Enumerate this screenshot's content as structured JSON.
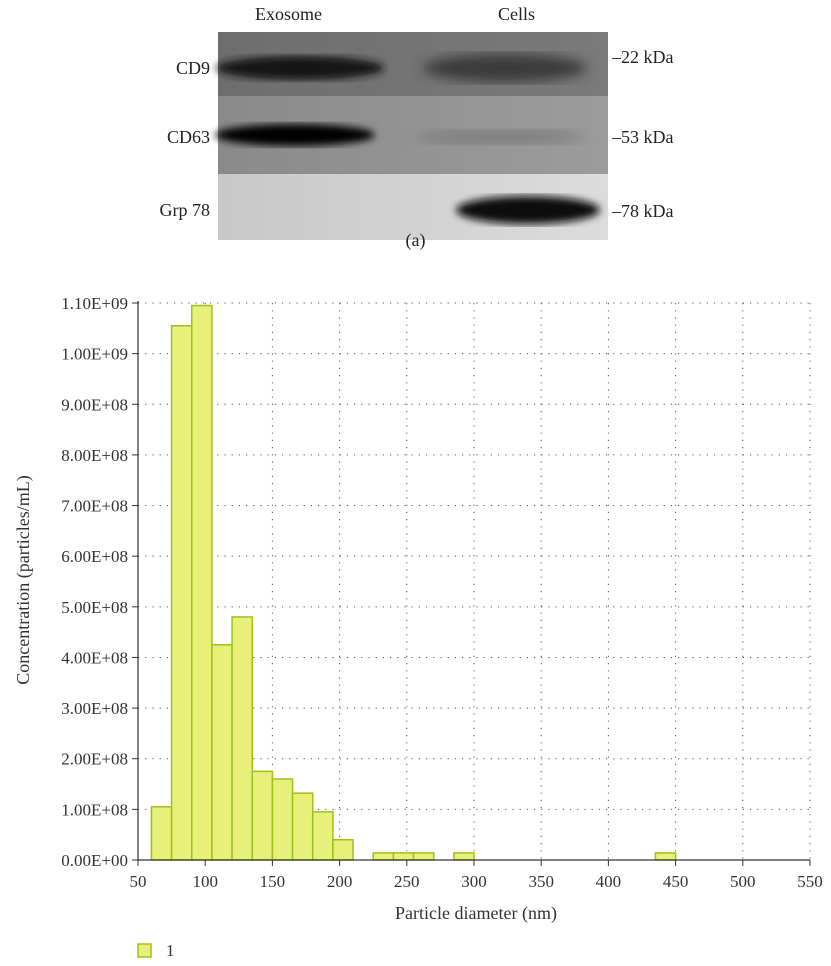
{
  "western_blot": {
    "columns": [
      "Exosome",
      "Cells"
    ],
    "rows": [
      {
        "name": "CD9",
        "kda": "–22 kDa"
      },
      {
        "name": "CD63",
        "kda": "–53 kDa"
      },
      {
        "name": "Grp 78",
        "kda": "–78 kDa"
      }
    ],
    "panel_label": "(a)"
  },
  "chart_data": {
    "type": "bar",
    "xlabel": "Particle diameter (nm)",
    "ylabel": "Concentration (particles/mL)",
    "xlim": [
      50,
      550
    ],
    "ylim": [
      0,
      1100000000
    ],
    "x_ticks": [
      "50",
      "100",
      "150",
      "200",
      "250",
      "300",
      "350",
      "400",
      "450",
      "500",
      "550"
    ],
    "y_ticks": [
      "0.00E+00",
      "1.00E+08",
      "2.00E+08",
      "3.00E+08",
      "4.00E+08",
      "5.00E+08",
      "6.00E+08",
      "7.00E+08",
      "8.00E+08",
      "9.00E+08",
      "1.00E+09",
      "1.10E+09"
    ],
    "grid": true,
    "bin_width": 15,
    "series": [
      {
        "name": "1",
        "color": "#e8f07a",
        "edge_color": "#9cc21a",
        "bins": [
          {
            "x": 67.5,
            "y": 105000000
          },
          {
            "x": 82.5,
            "y": 1055000000
          },
          {
            "x": 97.5,
            "y": 1095000000
          },
          {
            "x": 112.5,
            "y": 425000000
          },
          {
            "x": 127.5,
            "y": 480000000
          },
          {
            "x": 142.5,
            "y": 175000000
          },
          {
            "x": 157.5,
            "y": 160000000
          },
          {
            "x": 172.5,
            "y": 132000000
          },
          {
            "x": 187.5,
            "y": 95000000
          },
          {
            "x": 202.5,
            "y": 40000000
          },
          {
            "x": 232.5,
            "y": 14000000
          },
          {
            "x": 247.5,
            "y": 14000000
          },
          {
            "x": 262.5,
            "y": 14000000
          },
          {
            "x": 292.5,
            "y": 14000000
          },
          {
            "x": 442.5,
            "y": 14000000
          }
        ]
      }
    ],
    "legend_position": "bottom-left"
  }
}
